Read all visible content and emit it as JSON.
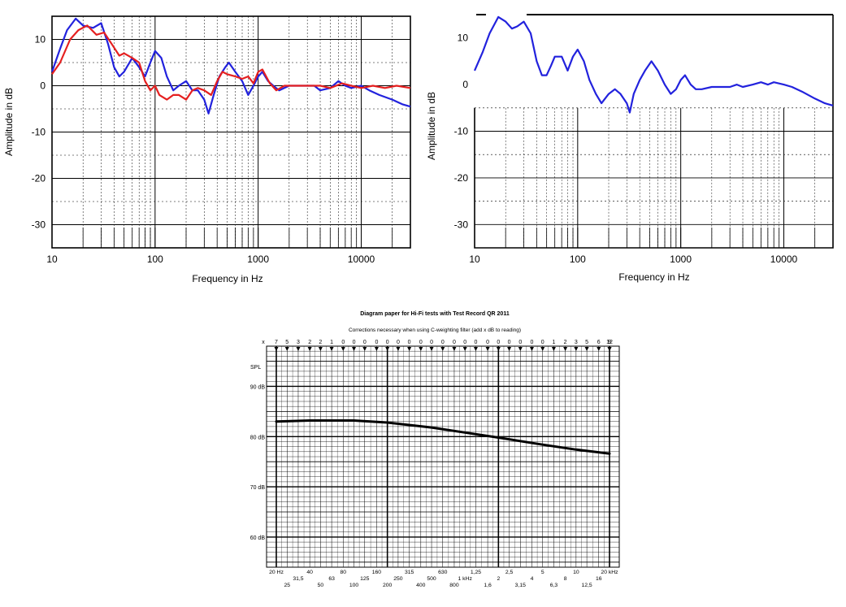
{
  "charts": {
    "left": {
      "ylabel": "Amplitude in dB",
      "xlabel": "Frequency in Hz",
      "yticks": [
        "10",
        "0",
        "-10",
        "-20",
        "-30"
      ],
      "xticks": [
        "10",
        "100",
        "1000",
        "10000"
      ]
    },
    "right": {
      "ylabel": "Amplitude in dB",
      "xlabel": "Frequency in Hz",
      "yticks": [
        "10",
        "0",
        "-10",
        "-20",
        "-30"
      ],
      "xticks": [
        "10",
        "100",
        "1000",
        "10000"
      ]
    },
    "bottom": {
      "title": "Diagram paper for Hi-Fi tests with Test Record QR 2011",
      "subtitle": "Corrections necessary when using C-weighting filter (add x dB to reading)",
      "x_marker": "x",
      "corrections": [
        "7",
        "5",
        "3",
        "2",
        "2",
        "1",
        "0",
        "0",
        "0",
        "0",
        "0",
        "0",
        "0",
        "0",
        "0",
        "0",
        "0",
        "0",
        "0",
        "0",
        "0",
        "0",
        "0",
        "0",
        "0",
        "1",
        "2",
        "3",
        "5",
        "6",
        "9",
        "12"
      ],
      "spl_label": "SPL",
      "db_labels": [
        "90 dB",
        "80 dB",
        "70 dB",
        "60 dB"
      ],
      "freq_row1": [
        "20 Hz",
        "40",
        "80",
        "160",
        "315",
        "630",
        "1,25",
        "2,5",
        "5",
        "10",
        "20 kHz"
      ],
      "freq_row2": [
        "31,5",
        "63",
        "125",
        "250",
        "500",
        "1 kHz",
        "2",
        "4",
        "8",
        "16"
      ],
      "freq_row3": [
        "25",
        "50",
        "100",
        "200",
        "400",
        "800",
        "1,6",
        "3,15",
        "6,3",
        "12,5"
      ]
    }
  },
  "chart_data": [
    {
      "type": "line",
      "xscale": "log",
      "xlim": [
        10,
        30000
      ],
      "ylim": [
        -35,
        15
      ],
      "ylabel": "Amplitude in dB",
      "xlabel": "Frequency in Hz",
      "grid": true,
      "series": [
        {
          "color": "#2222dd",
          "points": [
            [
              10,
              3
            ],
            [
              12,
              8
            ],
            [
              14,
              12
            ],
            [
              17,
              14.5
            ],
            [
              20,
              13
            ],
            [
              25,
              12.5
            ],
            [
              30,
              13.5
            ],
            [
              35,
              9
            ],
            [
              40,
              4
            ],
            [
              45,
              2
            ],
            [
              50,
              3
            ],
            [
              60,
              6
            ],
            [
              70,
              4
            ],
            [
              80,
              2
            ],
            [
              90,
              5
            ],
            [
              100,
              7.5
            ],
            [
              115,
              6
            ],
            [
              130,
              2
            ],
            [
              150,
              -1
            ],
            [
              170,
              0
            ],
            [
              200,
              1
            ],
            [
              230,
              -1
            ],
            [
              260,
              -1
            ],
            [
              300,
              -3
            ],
            [
              330,
              -6
            ],
            [
              370,
              -2
            ],
            [
              420,
              2
            ],
            [
              480,
              4
            ],
            [
              520,
              5
            ],
            [
              600,
              3
            ],
            [
              700,
              1
            ],
            [
              800,
              -2
            ],
            [
              900,
              0
            ],
            [
              1000,
              2
            ],
            [
              1100,
              3
            ],
            [
              1250,
              1
            ],
            [
              1400,
              0
            ],
            [
              1600,
              -1
            ],
            [
              2000,
              0
            ],
            [
              2500,
              0
            ],
            [
              3000,
              0
            ],
            [
              3500,
              0
            ],
            [
              4000,
              -1
            ],
            [
              5000,
              -0.5
            ],
            [
              6000,
              1
            ],
            [
              7000,
              0
            ],
            [
              8000,
              -0.5
            ],
            [
              10000,
              0
            ],
            [
              12000,
              -1
            ],
            [
              15000,
              -2
            ],
            [
              20000,
              -3
            ],
            [
              25000,
              -4
            ],
            [
              30000,
              -4.5
            ]
          ]
        },
        {
          "color": "#e52020",
          "points": [
            [
              10,
              2.5
            ],
            [
              12,
              5
            ],
            [
              15,
              10
            ],
            [
              18,
              12
            ],
            [
              22,
              13
            ],
            [
              27,
              11
            ],
            [
              32,
              11.5
            ],
            [
              38,
              9
            ],
            [
              45,
              6.5
            ],
            [
              50,
              7
            ],
            [
              60,
              6
            ],
            [
              70,
              5
            ],
            [
              80,
              1
            ],
            [
              90,
              -1
            ],
            [
              100,
              0
            ],
            [
              110,
              -2
            ],
            [
              130,
              -3
            ],
            [
              150,
              -2
            ],
            [
              170,
              -2
            ],
            [
              200,
              -3
            ],
            [
              230,
              -1
            ],
            [
              260,
              -0.5
            ],
            [
              300,
              -1
            ],
            [
              350,
              -2
            ],
            [
              400,
              1
            ],
            [
              450,
              3
            ],
            [
              500,
              2.5
            ],
            [
              600,
              2
            ],
            [
              700,
              1.5
            ],
            [
              800,
              2
            ],
            [
              900,
              0.5
            ],
            [
              1000,
              3
            ],
            [
              1100,
              3.5
            ],
            [
              1300,
              0.5
            ],
            [
              1500,
              -1
            ],
            [
              1800,
              0
            ],
            [
              2200,
              0
            ],
            [
              2700,
              0
            ],
            [
              3300,
              0
            ],
            [
              4000,
              0
            ],
            [
              5000,
              -0.5
            ],
            [
              6500,
              0.5
            ],
            [
              8000,
              0
            ],
            [
              10000,
              -0.5
            ],
            [
              13000,
              0
            ],
            [
              17000,
              -0.5
            ],
            [
              22000,
              0
            ],
            [
              30000,
              -0.5
            ]
          ]
        }
      ]
    },
    {
      "type": "line",
      "xscale": "log",
      "xlim": [
        10,
        30000
      ],
      "ylim": [
        -35,
        15
      ],
      "ylabel": "Amplitude in dB",
      "xlabel": "Frequency in Hz",
      "grid": true,
      "series": [
        {
          "color": "#2222dd",
          "points": [
            [
              10,
              3
            ],
            [
              12,
              7
            ],
            [
              14,
              11
            ],
            [
              17,
              14.5
            ],
            [
              20,
              13.5
            ],
            [
              23,
              12
            ],
            [
              26,
              12.5
            ],
            [
              30,
              13.5
            ],
            [
              35,
              11
            ],
            [
              40,
              5
            ],
            [
              45,
              2
            ],
            [
              50,
              2
            ],
            [
              55,
              4
            ],
            [
              60,
              6
            ],
            [
              70,
              6
            ],
            [
              80,
              3
            ],
            [
              90,
              6
            ],
            [
              100,
              7.5
            ],
            [
              115,
              5
            ],
            [
              130,
              1
            ],
            [
              150,
              -2
            ],
            [
              170,
              -4
            ],
            [
              200,
              -2
            ],
            [
              230,
              -1
            ],
            [
              260,
              -2
            ],
            [
              300,
              -4
            ],
            [
              320,
              -6
            ],
            [
              350,
              -2
            ],
            [
              400,
              1
            ],
            [
              450,
              3
            ],
            [
              520,
              5
            ],
            [
              600,
              3
            ],
            [
              700,
              0
            ],
            [
              800,
              -2
            ],
            [
              900,
              -1
            ],
            [
              1000,
              1
            ],
            [
              1100,
              2
            ],
            [
              1250,
              0
            ],
            [
              1400,
              -1
            ],
            [
              1600,
              -1
            ],
            [
              2000,
              -0.5
            ],
            [
              2500,
              -0.5
            ],
            [
              3000,
              -0.5
            ],
            [
              3500,
              0
            ],
            [
              4000,
              -0.5
            ],
            [
              5000,
              0
            ],
            [
              6000,
              0.5
            ],
            [
              7000,
              0
            ],
            [
              8000,
              0.5
            ],
            [
              10000,
              0
            ],
            [
              12000,
              -0.5
            ],
            [
              15000,
              -1.5
            ],
            [
              20000,
              -3
            ],
            [
              25000,
              -4
            ],
            [
              30000,
              -4.5
            ]
          ]
        }
      ]
    },
    {
      "type": "line",
      "xscale": "log",
      "xlim": [
        20,
        20000
      ],
      "ylim": [
        54,
        98
      ],
      "grid": true,
      "series": [
        {
          "color": "#000000",
          "points": [
            [
              20,
              83
            ],
            [
              40,
              83.2
            ],
            [
              100,
              83.2
            ],
            [
              200,
              82.8
            ],
            [
              500,
              81.8
            ],
            [
              1000,
              80.8
            ],
            [
              2000,
              79.8
            ],
            [
              5000,
              78.4
            ],
            [
              10000,
              77.4
            ],
            [
              20000,
              76.6
            ]
          ]
        }
      ]
    }
  ]
}
